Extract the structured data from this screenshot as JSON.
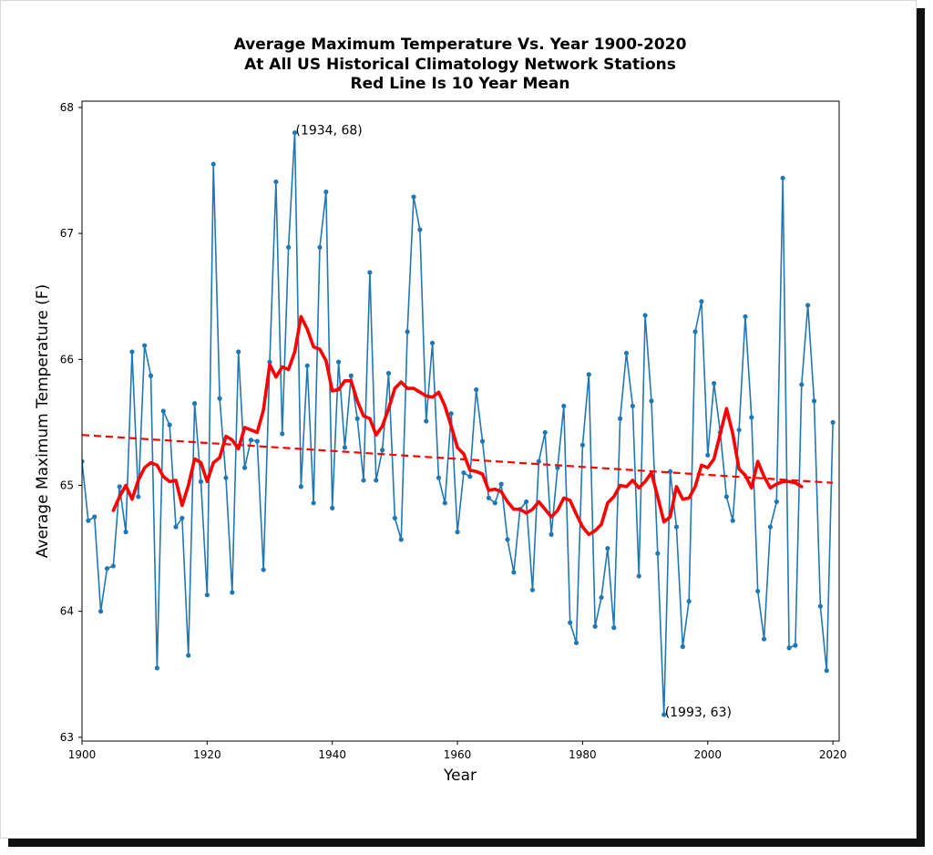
{
  "chart_data": {
    "type": "line",
    "title_lines": [
      "Average Maximum Temperature Vs. Year 1900-2020",
      "At All US Historical Climatology Network Stations",
      "Red Line Is 10 Year Mean"
    ],
    "xlabel": "Year",
    "ylabel": "Average Maximum Temperature (F)",
    "xlim": [
      1900,
      2021
    ],
    "ylim": [
      62.97,
      68.05
    ],
    "x_ticks": [
      1900,
      1920,
      1940,
      1960,
      1980,
      2000,
      2020
    ],
    "y_ticks": [
      63,
      64,
      65,
      66,
      67,
      68
    ],
    "grid": false,
    "annotations": [
      {
        "text": "(1934, 68)",
        "x": 1934,
        "y": 67.8
      },
      {
        "text": "(1993, 63)",
        "x": 1993,
        "y": 63.18
      }
    ],
    "series": [
      {
        "kind": "annual",
        "color": "#1f77b4",
        "x": [
          1900,
          1901,
          1902,
          1903,
          1904,
          1905,
          1906,
          1907,
          1908,
          1909,
          1910,
          1911,
          1912,
          1913,
          1914,
          1915,
          1916,
          1917,
          1918,
          1919,
          1920,
          1921,
          1922,
          1923,
          1924,
          1925,
          1926,
          1927,
          1928,
          1929,
          1930,
          1931,
          1932,
          1933,
          1934,
          1935,
          1936,
          1937,
          1938,
          1939,
          1940,
          1941,
          1942,
          1943,
          1944,
          1945,
          1946,
          1947,
          1948,
          1949,
          1950,
          1951,
          1952,
          1953,
          1954,
          1955,
          1956,
          1957,
          1958,
          1959,
          1960,
          1961,
          1962,
          1963,
          1964,
          1965,
          1966,
          1967,
          1968,
          1969,
          1970,
          1971,
          1972,
          1973,
          1974,
          1975,
          1976,
          1977,
          1978,
          1979,
          1980,
          1981,
          1982,
          1983,
          1984,
          1985,
          1986,
          1987,
          1988,
          1989,
          1990,
          1991,
          1992,
          1993,
          1994,
          1995,
          1996,
          1997,
          1998,
          1999,
          2000,
          2001,
          2002,
          2003,
          2004,
          2005,
          2006,
          2007,
          2008,
          2009,
          2010,
          2011,
          2012,
          2013,
          2014,
          2015,
          2016,
          2017,
          2018,
          2019,
          2020
        ],
        "values": [
          65.19,
          64.72,
          64.75,
          64.0,
          64.34,
          64.36,
          64.99,
          64.63,
          66.06,
          64.91,
          66.11,
          65.87,
          63.55,
          65.59,
          65.48,
          64.67,
          64.74,
          63.65,
          65.65,
          65.03,
          64.13,
          67.55,
          65.69,
          65.06,
          64.15,
          66.06,
          65.14,
          65.36,
          65.35,
          64.33,
          65.98,
          67.41,
          65.41,
          66.89,
          67.8,
          64.99,
          65.95,
          64.86,
          66.89,
          67.33,
          64.82,
          65.98,
          65.3,
          65.87,
          65.53,
          65.04,
          66.69,
          65.04,
          65.28,
          65.89,
          64.74,
          64.57,
          66.22,
          67.29,
          67.03,
          65.51,
          66.13,
          65.06,
          64.86,
          65.57,
          64.63,
          65.1,
          65.07,
          65.76,
          65.35,
          64.9,
          64.86,
          65.01,
          64.57,
          64.31,
          64.81,
          64.87,
          64.17,
          65.19,
          65.42,
          64.61,
          65.14,
          65.63,
          63.91,
          63.75,
          65.32,
          65.88,
          63.88,
          64.11,
          64.5,
          63.87,
          65.53,
          66.05,
          65.63,
          64.28,
          66.35,
          65.67,
          64.46,
          63.18,
          65.11,
          64.67,
          63.72,
          64.08,
          66.22,
          66.46,
          65.24,
          65.81,
          65.42,
          64.91,
          64.72,
          65.44,
          66.34,
          65.54,
          64.16,
          63.78,
          64.67,
          64.87,
          67.44,
          63.71,
          63.73,
          65.8,
          66.43,
          65.67,
          64.04,
          63.53,
          65.5
        ]
      },
      {
        "kind": "ten_year_mean",
        "color": "#ff0000",
        "x": [
          1905,
          1906,
          1907,
          1908,
          1909,
          1910,
          1911,
          1912,
          1913,
          1914,
          1915,
          1916,
          1917,
          1918,
          1919,
          1920,
          1921,
          1922,
          1923,
          1924,
          1925,
          1926,
          1927,
          1928,
          1929,
          1930,
          1931,
          1932,
          1933,
          1934,
          1935,
          1936,
          1937,
          1938,
          1939,
          1940,
          1941,
          1942,
          1943,
          1944,
          1945,
          1946,
          1947,
          1948,
          1949,
          1950,
          1951,
          1952,
          1953,
          1954,
          1955,
          1956,
          1957,
          1958,
          1959,
          1960,
          1961,
          1962,
          1963,
          1964,
          1965,
          1966,
          1967,
          1968,
          1969,
          1970,
          1971,
          1972,
          1973,
          1974,
          1975,
          1976,
          1977,
          1978,
          1979,
          1980,
          1981,
          1982,
          1983,
          1984,
          1985,
          1986,
          1987,
          1988,
          1989,
          1990,
          1991,
          1992,
          1993,
          1994,
          1995,
          1996,
          1997,
          1998,
          1999,
          2000,
          2001,
          2002,
          2003,
          2004,
          2005,
          2006,
          2007,
          2008,
          2009,
          2010,
          2011,
          2012,
          2013,
          2014,
          2015
        ],
        "values": [
          64.8,
          64.91,
          65.0,
          64.89,
          65.04,
          65.14,
          65.18,
          65.16,
          65.07,
          65.03,
          65.04,
          64.84,
          65.0,
          65.21,
          65.18,
          65.03,
          65.18,
          65.22,
          65.39,
          65.36,
          65.29,
          65.46,
          65.44,
          65.42,
          65.6,
          65.96,
          65.86,
          65.94,
          65.92,
          66.06,
          66.34,
          66.24,
          66.1,
          66.08,
          65.99,
          65.75,
          65.76,
          65.83,
          65.83,
          65.67,
          65.55,
          65.53,
          65.4,
          65.47,
          65.61,
          65.77,
          65.82,
          65.77,
          65.77,
          65.74,
          65.71,
          65.7,
          65.74,
          65.63,
          65.47,
          65.3,
          65.25,
          65.12,
          65.11,
          65.09,
          64.96,
          64.97,
          64.95,
          64.87,
          64.81,
          64.81,
          64.78,
          64.81,
          64.87,
          64.81,
          64.75,
          64.8,
          64.9,
          64.88,
          64.77,
          64.67,
          64.61,
          64.64,
          64.69,
          64.86,
          64.91,
          65.0,
          64.99,
          65.04,
          64.98,
          65.03,
          65.1,
          64.91,
          64.71,
          64.75,
          64.99,
          64.89,
          64.9,
          64.99,
          65.16,
          65.14,
          65.21,
          65.41,
          65.61,
          65.41,
          65.13,
          65.08,
          64.98,
          65.19,
          65.07,
          64.98,
          65.01,
          65.03,
          65.03,
          65.02,
          64.99
        ]
      },
      {
        "kind": "linear_trend",
        "color": "#ff0000",
        "style": "dashed",
        "x": [
          1900,
          2020
        ],
        "values": [
          65.4,
          65.02
        ]
      }
    ]
  }
}
